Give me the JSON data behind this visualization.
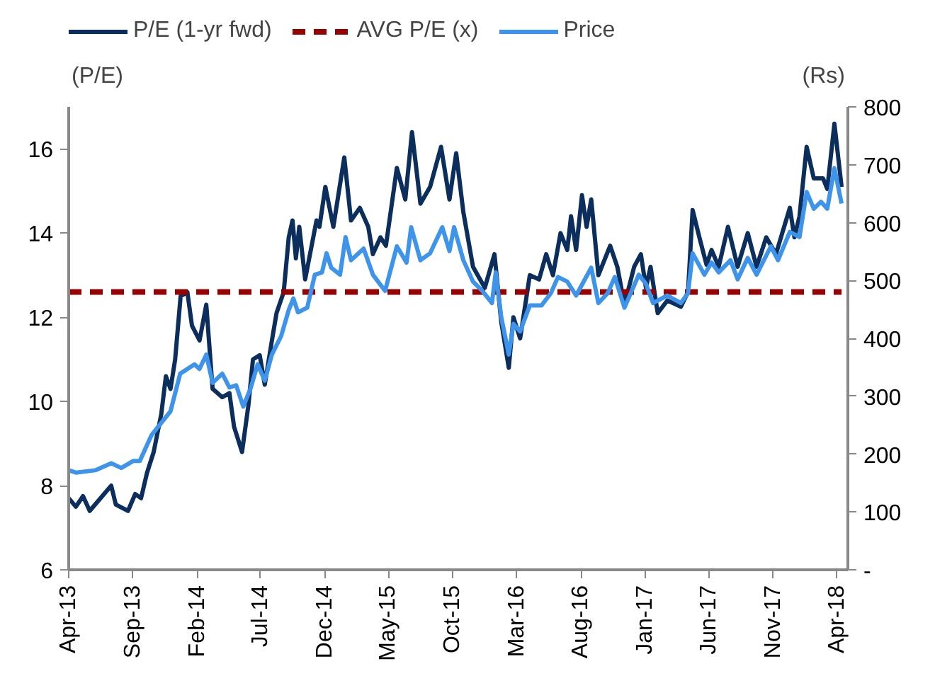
{
  "chart_data": {
    "type": "line",
    "ylabel": "(P/E)",
    "y2label": "(Rs)",
    "xlim": [
      "2013-04-01",
      "2018-04-27"
    ],
    "xticks": [
      {
        "value": "2013-04-01",
        "label": "Apr-13"
      },
      {
        "value": "2013-09-01",
        "label": "Sep-13"
      },
      {
        "value": "2014-02-01",
        "label": "Feb-14"
      },
      {
        "value": "2014-07-01",
        "label": "Jul-14"
      },
      {
        "value": "2014-12-01",
        "label": "Dec-14"
      },
      {
        "value": "2015-05-01",
        "label": "May-15"
      },
      {
        "value": "2015-10-01",
        "label": "Oct-15"
      },
      {
        "value": "2016-03-01",
        "label": "Mar-16"
      },
      {
        "value": "2016-08-01",
        "label": "Aug-16"
      },
      {
        "value": "2017-01-01",
        "label": "Jan-17"
      },
      {
        "value": "2017-06-01",
        "label": "Jun-17"
      },
      {
        "value": "2017-11-01",
        "label": "Nov-17"
      },
      {
        "value": "2018-04-01",
        "label": "Apr-18"
      }
    ],
    "ylim": [
      6,
      17
    ],
    "yticks": [
      6,
      8,
      10,
      12,
      14,
      16
    ],
    "y2lim": [
      0,
      800
    ],
    "y2ticks": [
      {
        "value": 0,
        "label": "-"
      },
      100,
      200,
      300,
      400,
      500,
      600,
      700,
      800
    ],
    "grid": false,
    "legend": "top",
    "series": [
      {
        "name": "P/E (1-yr fwd)",
        "color": "#0b2e5c",
        "type": "line",
        "axis": "y",
        "line_style": "solid",
        "x": [
          "2013-04-01",
          "2013-04-18",
          "2013-05-05",
          "2013-05-21",
          "2013-06-24",
          "2013-07-11",
          "2013-07-22",
          "2013-08-20",
          "2013-09-06",
          "2013-09-20",
          "2013-10-04",
          "2013-10-20",
          "2013-11-07",
          "2013-11-18",
          "2013-11-29",
          "2013-12-10",
          "2013-12-23",
          "2014-01-08",
          "2014-01-19",
          "2014-02-06",
          "2014-02-22",
          "2014-03-09",
          "2014-04-01",
          "2014-04-18",
          "2014-04-29",
          "2014-05-18",
          "2014-06-02",
          "2014-06-13",
          "2014-06-29",
          "2014-07-11",
          "2014-07-28",
          "2014-08-08",
          "2014-08-25",
          "2014-09-06",
          "2014-09-15",
          "2014-09-23",
          "2014-10-01",
          "2014-10-15",
          "2014-11-11",
          "2014-11-18",
          "2014-12-02",
          "2014-12-21",
          "2015-01-16",
          "2015-02-01",
          "2015-02-22",
          "2015-03-14",
          "2015-03-25",
          "2015-04-12",
          "2015-04-25",
          "2015-05-21",
          "2015-06-10",
          "2015-06-26",
          "2015-07-16",
          "2015-08-08",
          "2015-09-03",
          "2015-09-23",
          "2015-10-09",
          "2015-10-26",
          "2015-11-18",
          "2015-12-16",
          "2016-01-08",
          "2016-01-24",
          "2016-02-11",
          "2016-02-22",
          "2016-03-09",
          "2016-04-01",
          "2016-04-23",
          "2016-05-10",
          "2016-05-26",
          "2016-06-13",
          "2016-06-29",
          "2016-07-08",
          "2016-07-20",
          "2016-08-03",
          "2016-08-14",
          "2016-08-25",
          "2016-09-11",
          "2016-10-09",
          "2016-10-26",
          "2016-11-12",
          "2016-12-05",
          "2016-12-21",
          "2017-01-02",
          "2017-01-13",
          "2017-01-30",
          "2017-02-22",
          "2017-03-26",
          "2017-04-12",
          "2017-04-23",
          "2017-05-09",
          "2017-05-26",
          "2017-06-07",
          "2017-06-24",
          "2017-07-16",
          "2017-08-08",
          "2017-09-01",
          "2017-09-22",
          "2017-10-15",
          "2017-11-07",
          "2017-12-10",
          "2017-12-21",
          "2018-01-02",
          "2018-01-19",
          "2018-02-05",
          "2018-02-27",
          "2018-03-09",
          "2018-03-26",
          "2018-04-12"
        ],
        "values": [
          7.7,
          7.5,
          7.75,
          7.4,
          7.8,
          8.0,
          7.55,
          7.4,
          7.8,
          7.7,
          8.3,
          8.8,
          9.7,
          10.6,
          10.3,
          11.0,
          12.5,
          12.6,
          11.8,
          11.45,
          12.3,
          10.3,
          10.1,
          10.2,
          9.4,
          8.8,
          9.9,
          11.0,
          11.1,
          10.4,
          11.45,
          12.1,
          12.6,
          13.9,
          14.3,
          13.4,
          14.15,
          12.9,
          14.3,
          14.15,
          15.1,
          14.15,
          15.8,
          14.3,
          14.6,
          14.15,
          13.5,
          13.9,
          13.7,
          15.55,
          14.8,
          16.4,
          14.7,
          15.1,
          16.05,
          14.8,
          15.9,
          14.5,
          13.2,
          12.7,
          13.5,
          11.9,
          10.8,
          12.0,
          11.5,
          13.0,
          12.9,
          13.5,
          13.0,
          14.0,
          13.6,
          14.4,
          13.6,
          14.9,
          14.15,
          14.8,
          13.0,
          13.7,
          13.2,
          12.3,
          13.2,
          13.5,
          12.7,
          13.2,
          12.1,
          12.4,
          12.25,
          12.6,
          14.55,
          13.9,
          13.25,
          13.6,
          13.2,
          14.15,
          13.2,
          14.0,
          13.2,
          13.9,
          13.5,
          14.6,
          13.9,
          14.4,
          16.05,
          15.3,
          15.3,
          15.05,
          16.6,
          15.1
        ]
      },
      {
        "name": "AVG P/E (x)",
        "color": "#990000",
        "type": "line",
        "axis": "y",
        "line_style": "dashed",
        "x": [
          "2013-04-01",
          "2018-04-12"
        ],
        "values": [
          12.6,
          12.6
        ]
      },
      {
        "name": "Price",
        "color": "#3d94ea",
        "type": "line",
        "axis": "y2",
        "line_style": "solid",
        "x": [
          "2013-04-01",
          "2013-04-18",
          "2013-06-03",
          "2013-07-11",
          "2013-08-04",
          "2013-09-01",
          "2013-09-17",
          "2013-10-15",
          "2013-11-07",
          "2013-11-29",
          "2013-12-22",
          "2014-01-25",
          "2014-02-06",
          "2014-02-22",
          "2014-03-09",
          "2014-04-01",
          "2014-04-18",
          "2014-05-04",
          "2014-05-21",
          "2014-06-08",
          "2014-06-24",
          "2014-07-11",
          "2014-07-28",
          "2014-08-19",
          "2014-09-06",
          "2014-09-17",
          "2014-09-28",
          "2014-10-20",
          "2014-11-07",
          "2014-11-24",
          "2014-12-05",
          "2014-12-16",
          "2015-01-06",
          "2015-01-19",
          "2015-02-01",
          "2015-03-03",
          "2015-03-25",
          "2015-04-23",
          "2015-05-21",
          "2015-06-13",
          "2015-06-24",
          "2015-07-16",
          "2015-08-08",
          "2015-09-06",
          "2015-09-23",
          "2015-10-04",
          "2015-10-26",
          "2015-11-18",
          "2015-12-10",
          "2016-01-02",
          "2016-01-11",
          "2016-01-24",
          "2016-02-11",
          "2016-02-22",
          "2016-03-09",
          "2016-04-01",
          "2016-04-29",
          "2016-05-21",
          "2016-06-07",
          "2016-06-29",
          "2016-07-20",
          "2016-08-25",
          "2016-09-11",
          "2016-10-03",
          "2016-10-20",
          "2016-11-12",
          "2016-12-16",
          "2017-01-02",
          "2017-01-19",
          "2017-02-22",
          "2017-03-26",
          "2017-04-12",
          "2017-04-23",
          "2017-05-21",
          "2017-06-07",
          "2017-06-24",
          "2017-07-22",
          "2017-08-08",
          "2017-09-01",
          "2017-09-22",
          "2017-10-26",
          "2017-11-12",
          "2017-12-10",
          "2018-01-02",
          "2018-01-19",
          "2018-02-05",
          "2018-02-22",
          "2018-03-09",
          "2018-03-26",
          "2018-04-12"
        ],
        "values": [
          172,
          168,
          172,
          184,
          176,
          188,
          188,
          233,
          254,
          274,
          339,
          355,
          347,
          372,
          323,
          339,
          315,
          319,
          282,
          315,
          355,
          327,
          372,
          404,
          449,
          469,
          445,
          453,
          510,
          514,
          547,
          522,
          510,
          575,
          535,
          555,
          510,
          482,
          559,
          531,
          592,
          535,
          547,
          592,
          551,
          592,
          535,
          498,
          482,
          461,
          514,
          437,
          372,
          425,
          412,
          457,
          457,
          478,
          506,
          498,
          474,
          522,
          461,
          478,
          506,
          453,
          510,
          494,
          461,
          474,
          461,
          478,
          547,
          510,
          531,
          514,
          535,
          502,
          539,
          510,
          559,
          535,
          584,
          575,
          653,
          624,
          636,
          624,
          694,
          633
        ]
      }
    ]
  }
}
